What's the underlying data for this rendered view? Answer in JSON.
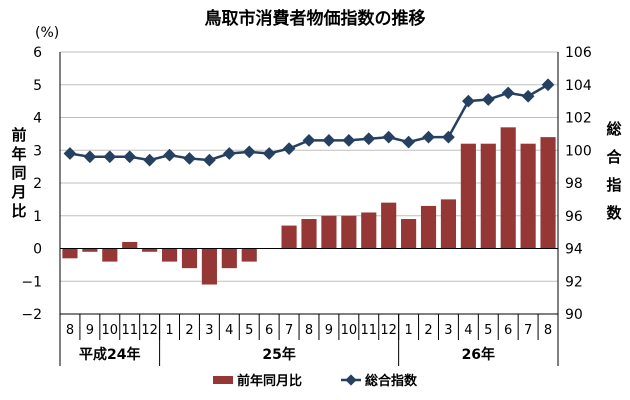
{
  "chart_data": {
    "type": "bar+line",
    "title": "鳥取市消費者物価指数の推移",
    "left_axis": {
      "unit": "(%)",
      "label_chars": [
        "前",
        "年",
        "同",
        "月",
        "比"
      ],
      "ylim": [
        -2,
        6
      ],
      "ticks": [
        "6",
        "5",
        "4",
        "3",
        "2",
        "1",
        "0",
        "−1",
        "−2"
      ]
    },
    "right_axis": {
      "label_chars": [
        "総",
        "合",
        "指",
        "数"
      ],
      "ylim": [
        90,
        106
      ],
      "ticks": [
        "106",
        "104",
        "102",
        "100",
        "98",
        "96",
        "94",
        "92",
        "90"
      ]
    },
    "categories": [
      "8",
      "9",
      "10",
      "11",
      "12",
      "1",
      "2",
      "3",
      "4",
      "5",
      "6",
      "7",
      "8",
      "9",
      "10",
      "11",
      "12",
      "1",
      "2",
      "3",
      "4",
      "5",
      "6",
      "7",
      "8"
    ],
    "x_groups": [
      {
        "label": "平成24年",
        "start": 0,
        "end": 5
      },
      {
        "label": "25年",
        "start": 5,
        "end": 17
      },
      {
        "label": "26年",
        "start": 17,
        "end": 25
      }
    ],
    "series": [
      {
        "name": "前年同月比",
        "type": "bar",
        "axis": "left",
        "color": "#953735",
        "values": [
          -0.3,
          -0.1,
          -0.4,
          0.2,
          -0.1,
          -0.4,
          -0.6,
          -1.1,
          -0.6,
          -0.4,
          0.0,
          0.7,
          0.9,
          1.0,
          1.0,
          1.1,
          1.4,
          0.9,
          1.3,
          1.5,
          3.2,
          3.2,
          3.7,
          3.2,
          3.4
        ]
      },
      {
        "name": "総合指数",
        "type": "line",
        "axis": "right",
        "color": "#254061",
        "values": [
          99.8,
          99.6,
          99.6,
          99.6,
          99.4,
          99.7,
          99.5,
          99.4,
          99.8,
          99.9,
          99.8,
          100.1,
          100.6,
          100.6,
          100.6,
          100.7,
          100.8,
          100.5,
          100.8,
          100.8,
          103.0,
          103.1,
          103.5,
          103.3,
          104.0
        ]
      }
    ],
    "grid": true,
    "legend_position": "bottom"
  }
}
